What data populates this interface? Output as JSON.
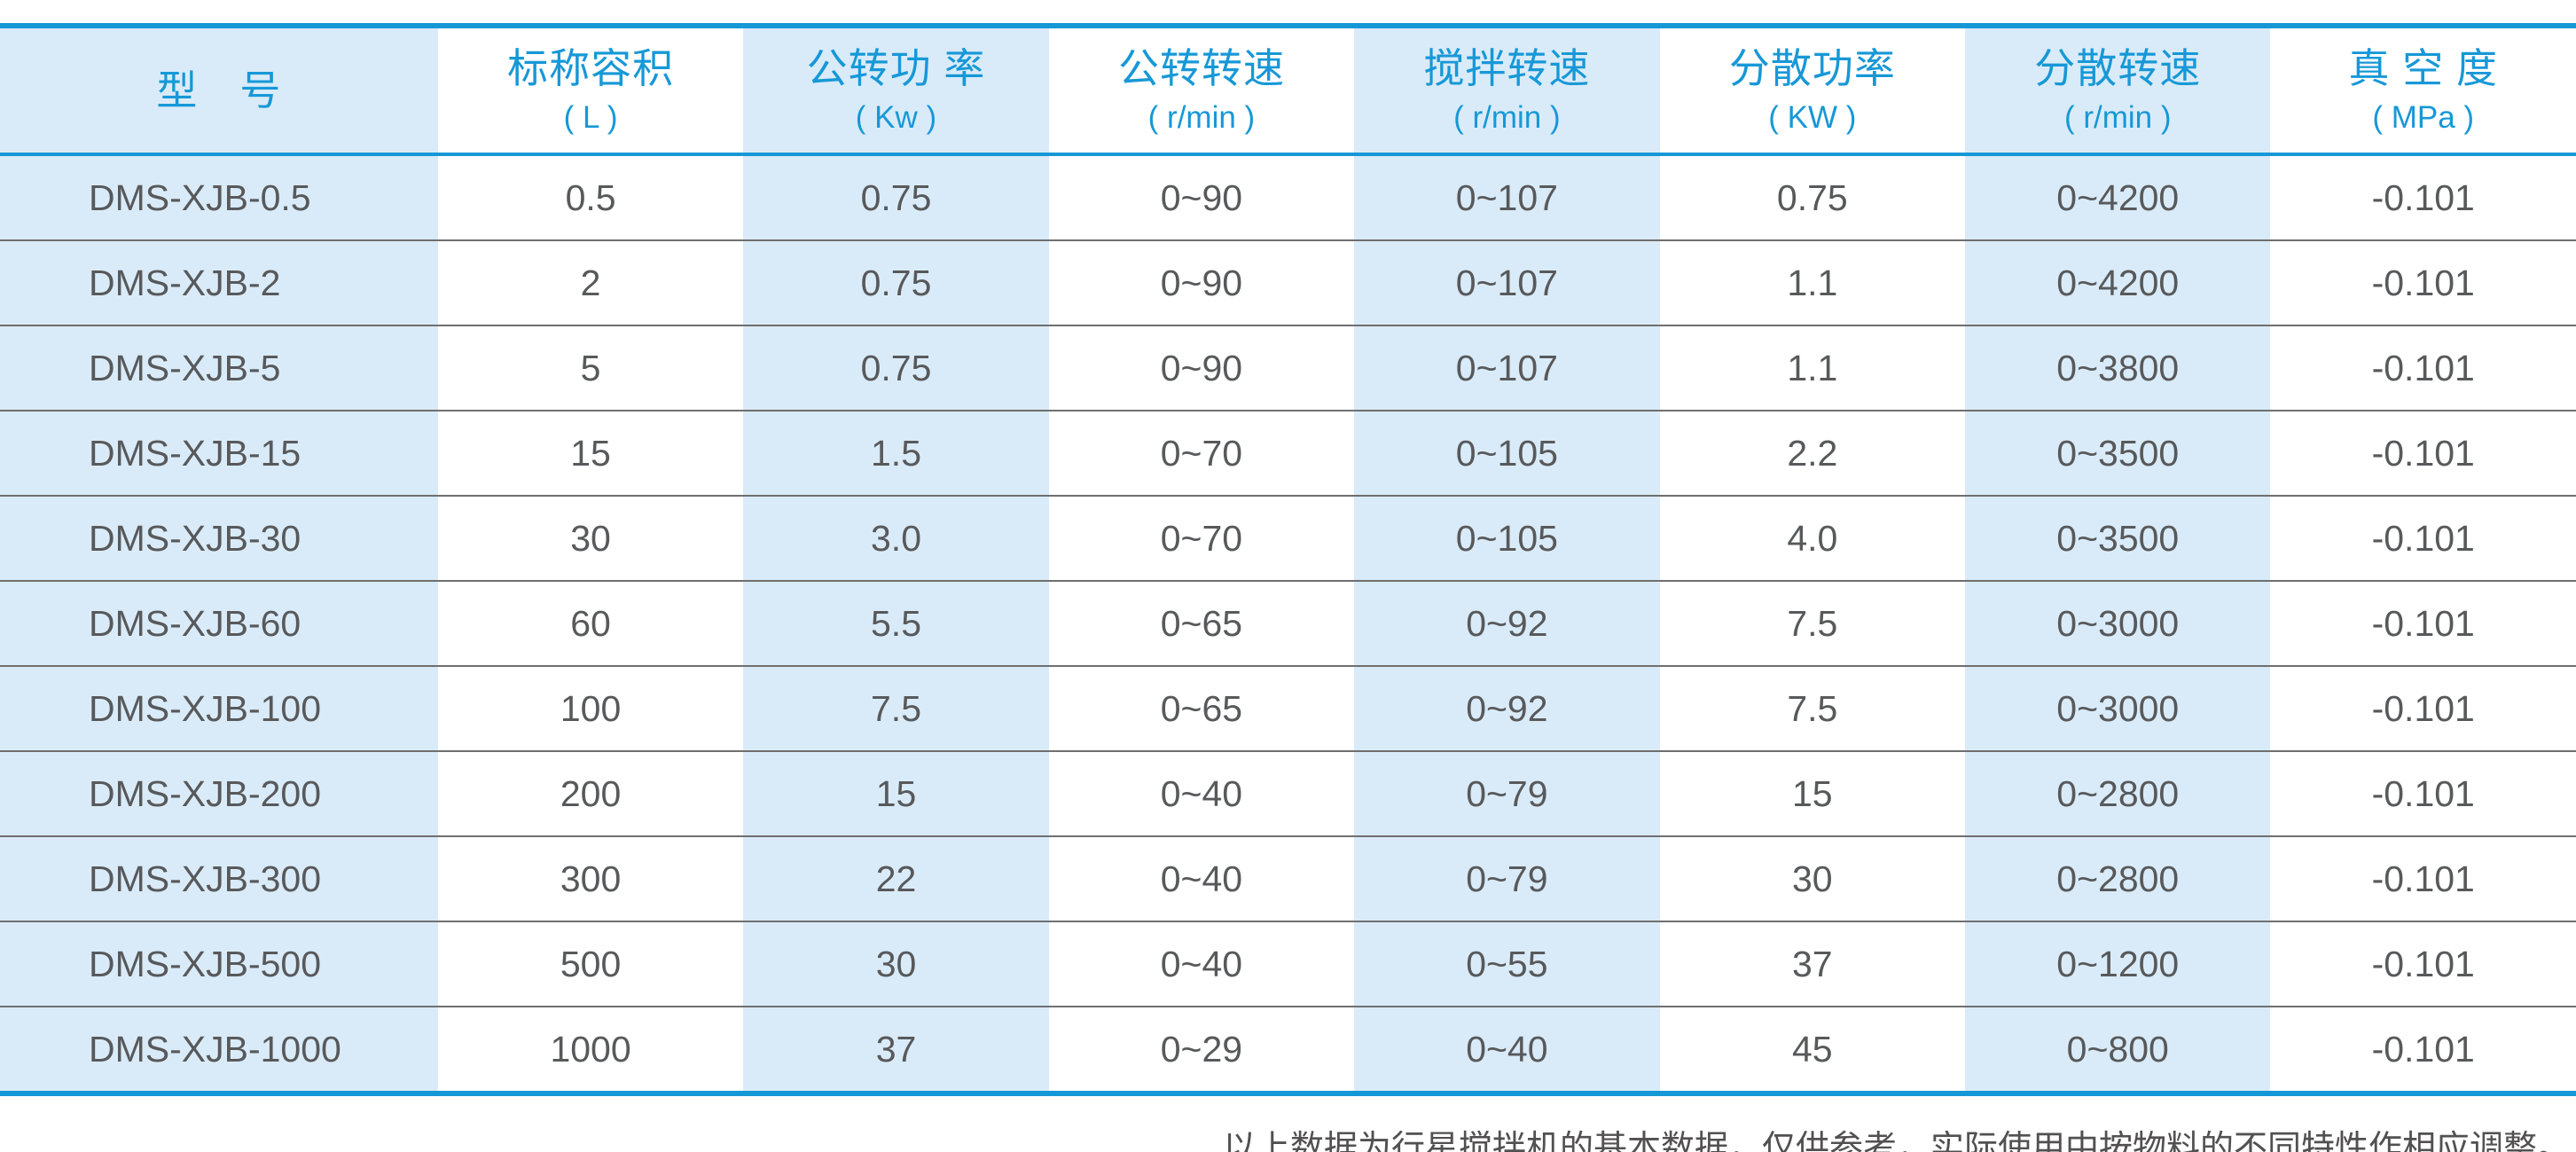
{
  "colors": {
    "accent_blue": "#1697d6",
    "header_text_blue": "#1798d7",
    "stripe_light_blue": "#d9ebf8",
    "data_text_gray": "#58595b",
    "row_separator_gray": "#6f6f6f",
    "footnote_gray": "#525050"
  },
  "table": {
    "columns": [
      {
        "label": "型　号",
        "unit": ""
      },
      {
        "label": "标称容积",
        "unit": "( L )"
      },
      {
        "label": "公转功 率",
        "unit": "( Kw )"
      },
      {
        "label": "公转转速",
        "unit": "( r/min )"
      },
      {
        "label": "搅拌转速",
        "unit": "( r/min )"
      },
      {
        "label": "分散功率",
        "unit": "( KW )"
      },
      {
        "label": "分散转速",
        "unit": "( r/min )"
      },
      {
        "label": "真 空 度",
        "unit": "( MPa )"
      }
    ],
    "rows": [
      [
        "DMS-XJB-0.5",
        "0.5",
        "0.75",
        "0~90",
        "0~107",
        "0.75",
        "0~4200",
        "-0.101"
      ],
      [
        "DMS-XJB-2",
        "2",
        "0.75",
        "0~90",
        "0~107",
        "1.1",
        "0~4200",
        "-0.101"
      ],
      [
        "DMS-XJB-5",
        "5",
        "0.75",
        "0~90",
        "0~107",
        "1.1",
        "0~3800",
        "-0.101"
      ],
      [
        "DMS-XJB-15",
        "15",
        "1.5",
        "0~70",
        "0~105",
        "2.2",
        "0~3500",
        "-0.101"
      ],
      [
        "DMS-XJB-30",
        "30",
        "3.0",
        "0~70",
        "0~105",
        "4.0",
        "0~3500",
        "-0.101"
      ],
      [
        "DMS-XJB-60",
        "60",
        "5.5",
        "0~65",
        "0~92",
        "7.5",
        "0~3000",
        "-0.101"
      ],
      [
        "DMS-XJB-100",
        "100",
        "7.5",
        "0~65",
        "0~92",
        "7.5",
        "0~3000",
        "-0.101"
      ],
      [
        "DMS-XJB-200",
        "200",
        "15",
        "0~40",
        "0~79",
        "15",
        "0~2800",
        "-0.101"
      ],
      [
        "DMS-XJB-300",
        "300",
        "22",
        "0~40",
        "0~79",
        "30",
        "0~2800",
        "-0.101"
      ],
      [
        "DMS-XJB-500",
        "500",
        "30",
        "0~40",
        "0~55",
        "37",
        "0~1200",
        "-0.101"
      ],
      [
        "DMS-XJB-1000",
        "1000",
        "37",
        "0~29",
        "0~40",
        "45",
        "0~800",
        "-0.101"
      ]
    ]
  },
  "footnote": "以上数据为行星搅拌机的基本数据，仅供参考，实际使用中按物料的不同特性作相应调整。"
}
